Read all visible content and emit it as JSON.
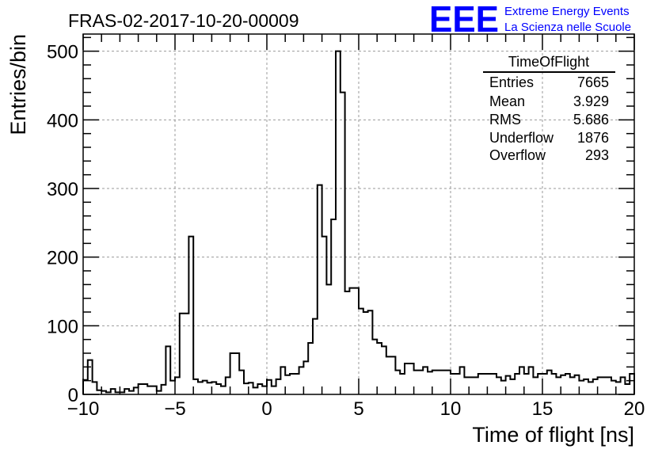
{
  "header": {
    "title": "FRAS-02-2017-10-20-00009",
    "logo_text": "EEE",
    "org_line1": "Extreme Energy Events",
    "org_line2": "La Scienza nelle Scuole",
    "logo_color": "#0000ff"
  },
  "stats": {
    "title": "TimeOfFlight",
    "rows": [
      {
        "label": "Entries",
        "value": "7665"
      },
      {
        "label": "Mean",
        "value": "3.929"
      },
      {
        "label": "RMS",
        "value": "5.686"
      },
      {
        "label": "Underflow",
        "value": "1876"
      },
      {
        "label": "Overflow",
        "value": "293"
      }
    ]
  },
  "chart_data": {
    "type": "histogram",
    "title": "FRAS-02-2017-10-20-00009",
    "xlabel": "Time of flight [ns]",
    "ylabel": "Entries/bin",
    "xlim": [
      -10,
      20
    ],
    "ylim": [
      0,
      525
    ],
    "bin_width": 0.25,
    "x_ticks": [
      -10,
      -5,
      0,
      5,
      10,
      15,
      20
    ],
    "y_ticks": [
      0,
      100,
      200,
      300,
      400,
      500
    ],
    "grid": true,
    "line_color": "#000000",
    "bin_edges_start": -10,
    "values": [
      21,
      50,
      18,
      6,
      5,
      3,
      8,
      3,
      3,
      8,
      5,
      10,
      15,
      15,
      12,
      12,
      5,
      14,
      70,
      20,
      25,
      118,
      118,
      230,
      22,
      18,
      20,
      17,
      18,
      15,
      12,
      25,
      60,
      60,
      35,
      16,
      17,
      10,
      15,
      12,
      21,
      12,
      22,
      40,
      28,
      30,
      30,
      40,
      48,
      75,
      110,
      305,
      230,
      160,
      255,
      500,
      440,
      150,
      155,
      155,
      125,
      120,
      122,
      80,
      75,
      70,
      55,
      55,
      35,
      30,
      45,
      45,
      35,
      35,
      40,
      33,
      35,
      35,
      35,
      35,
      30,
      30,
      40,
      25,
      25,
      25,
      30,
      30,
      30,
      30,
      25,
      20,
      27,
      22,
      30,
      40,
      30,
      40,
      25,
      30,
      30,
      35,
      30,
      25,
      28,
      30,
      25,
      28,
      20,
      22,
      18,
      22,
      25,
      25,
      25,
      20,
      18,
      25,
      15,
      30
    ]
  }
}
